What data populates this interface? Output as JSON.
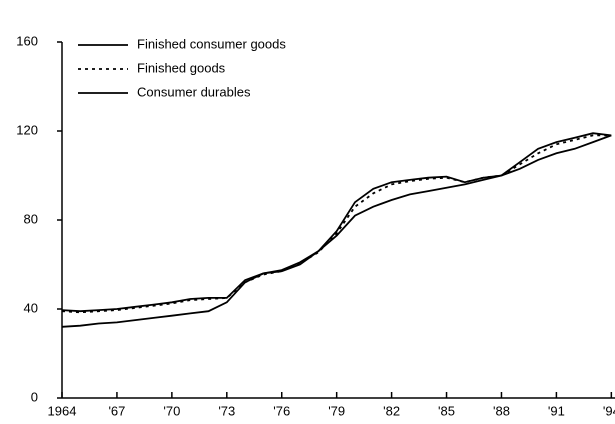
{
  "chart_data": {
    "type": "line",
    "x": [
      1964,
      1965,
      1966,
      1967,
      1968,
      1969,
      1970,
      1971,
      1972,
      1973,
      1974,
      1975,
      1976,
      1977,
      1978,
      1979,
      1980,
      1981,
      1982,
      1983,
      1984,
      1985,
      1986,
      1987,
      1988,
      1989,
      1990,
      1991,
      1992,
      1993,
      1994
    ],
    "series": [
      {
        "name": "Finished consumer goods",
        "color": "#000000",
        "style": "solid",
        "values": [
          39.5,
          39,
          39.5,
          40,
          41,
          42,
          43,
          44.5,
          45,
          45,
          53,
          56,
          57.5,
          61,
          66,
          75,
          88,
          94,
          97,
          98,
          99,
          99.5,
          97,
          99,
          100,
          106,
          112,
          115,
          117,
          119,
          118
        ]
      },
      {
        "name": "Finished goods",
        "color": "#000000",
        "style": "dotted",
        "values": [
          39,
          38.5,
          39,
          39.5,
          40.5,
          41.5,
          42.5,
          44,
          44.5,
          45,
          52,
          55.5,
          57,
          60.5,
          65.5,
          74,
          86,
          92,
          96,
          97.5,
          98.5,
          99,
          97,
          99,
          100,
          105,
          110,
          114,
          116,
          118,
          118
        ]
      },
      {
        "name": "Consumer durables",
        "color": "#000000",
        "style": "solid",
        "values": [
          32,
          32.5,
          33.5,
          34,
          35,
          36,
          37,
          38,
          39,
          43,
          52,
          56,
          57,
          60,
          66,
          73,
          82,
          86,
          89,
          91.5,
          93,
          94.5,
          96,
          98,
          100,
          103,
          107,
          110,
          112,
          115,
          118
        ]
      }
    ],
    "xlim": [
      1964,
      1994.2
    ],
    "xticks": [
      {
        "value": 1964,
        "label": "1964"
      },
      {
        "value": 1967,
        "label": "'67"
      },
      {
        "value": 1970,
        "label": "'70"
      },
      {
        "value": 1973,
        "label": "'73"
      },
      {
        "value": 1976,
        "label": "'76"
      },
      {
        "value": 1979,
        "label": "'79"
      },
      {
        "value": 1982,
        "label": "'82"
      },
      {
        "value": 1985,
        "label": "'85"
      },
      {
        "value": 1988,
        "label": "'88"
      },
      {
        "value": 1991,
        "label": "'91"
      },
      {
        "value": 1994,
        "label": "'94"
      }
    ],
    "ylim": [
      0,
      160
    ],
    "yticks": [
      0,
      40,
      80,
      120,
      160
    ],
    "legend": "top-left"
  }
}
